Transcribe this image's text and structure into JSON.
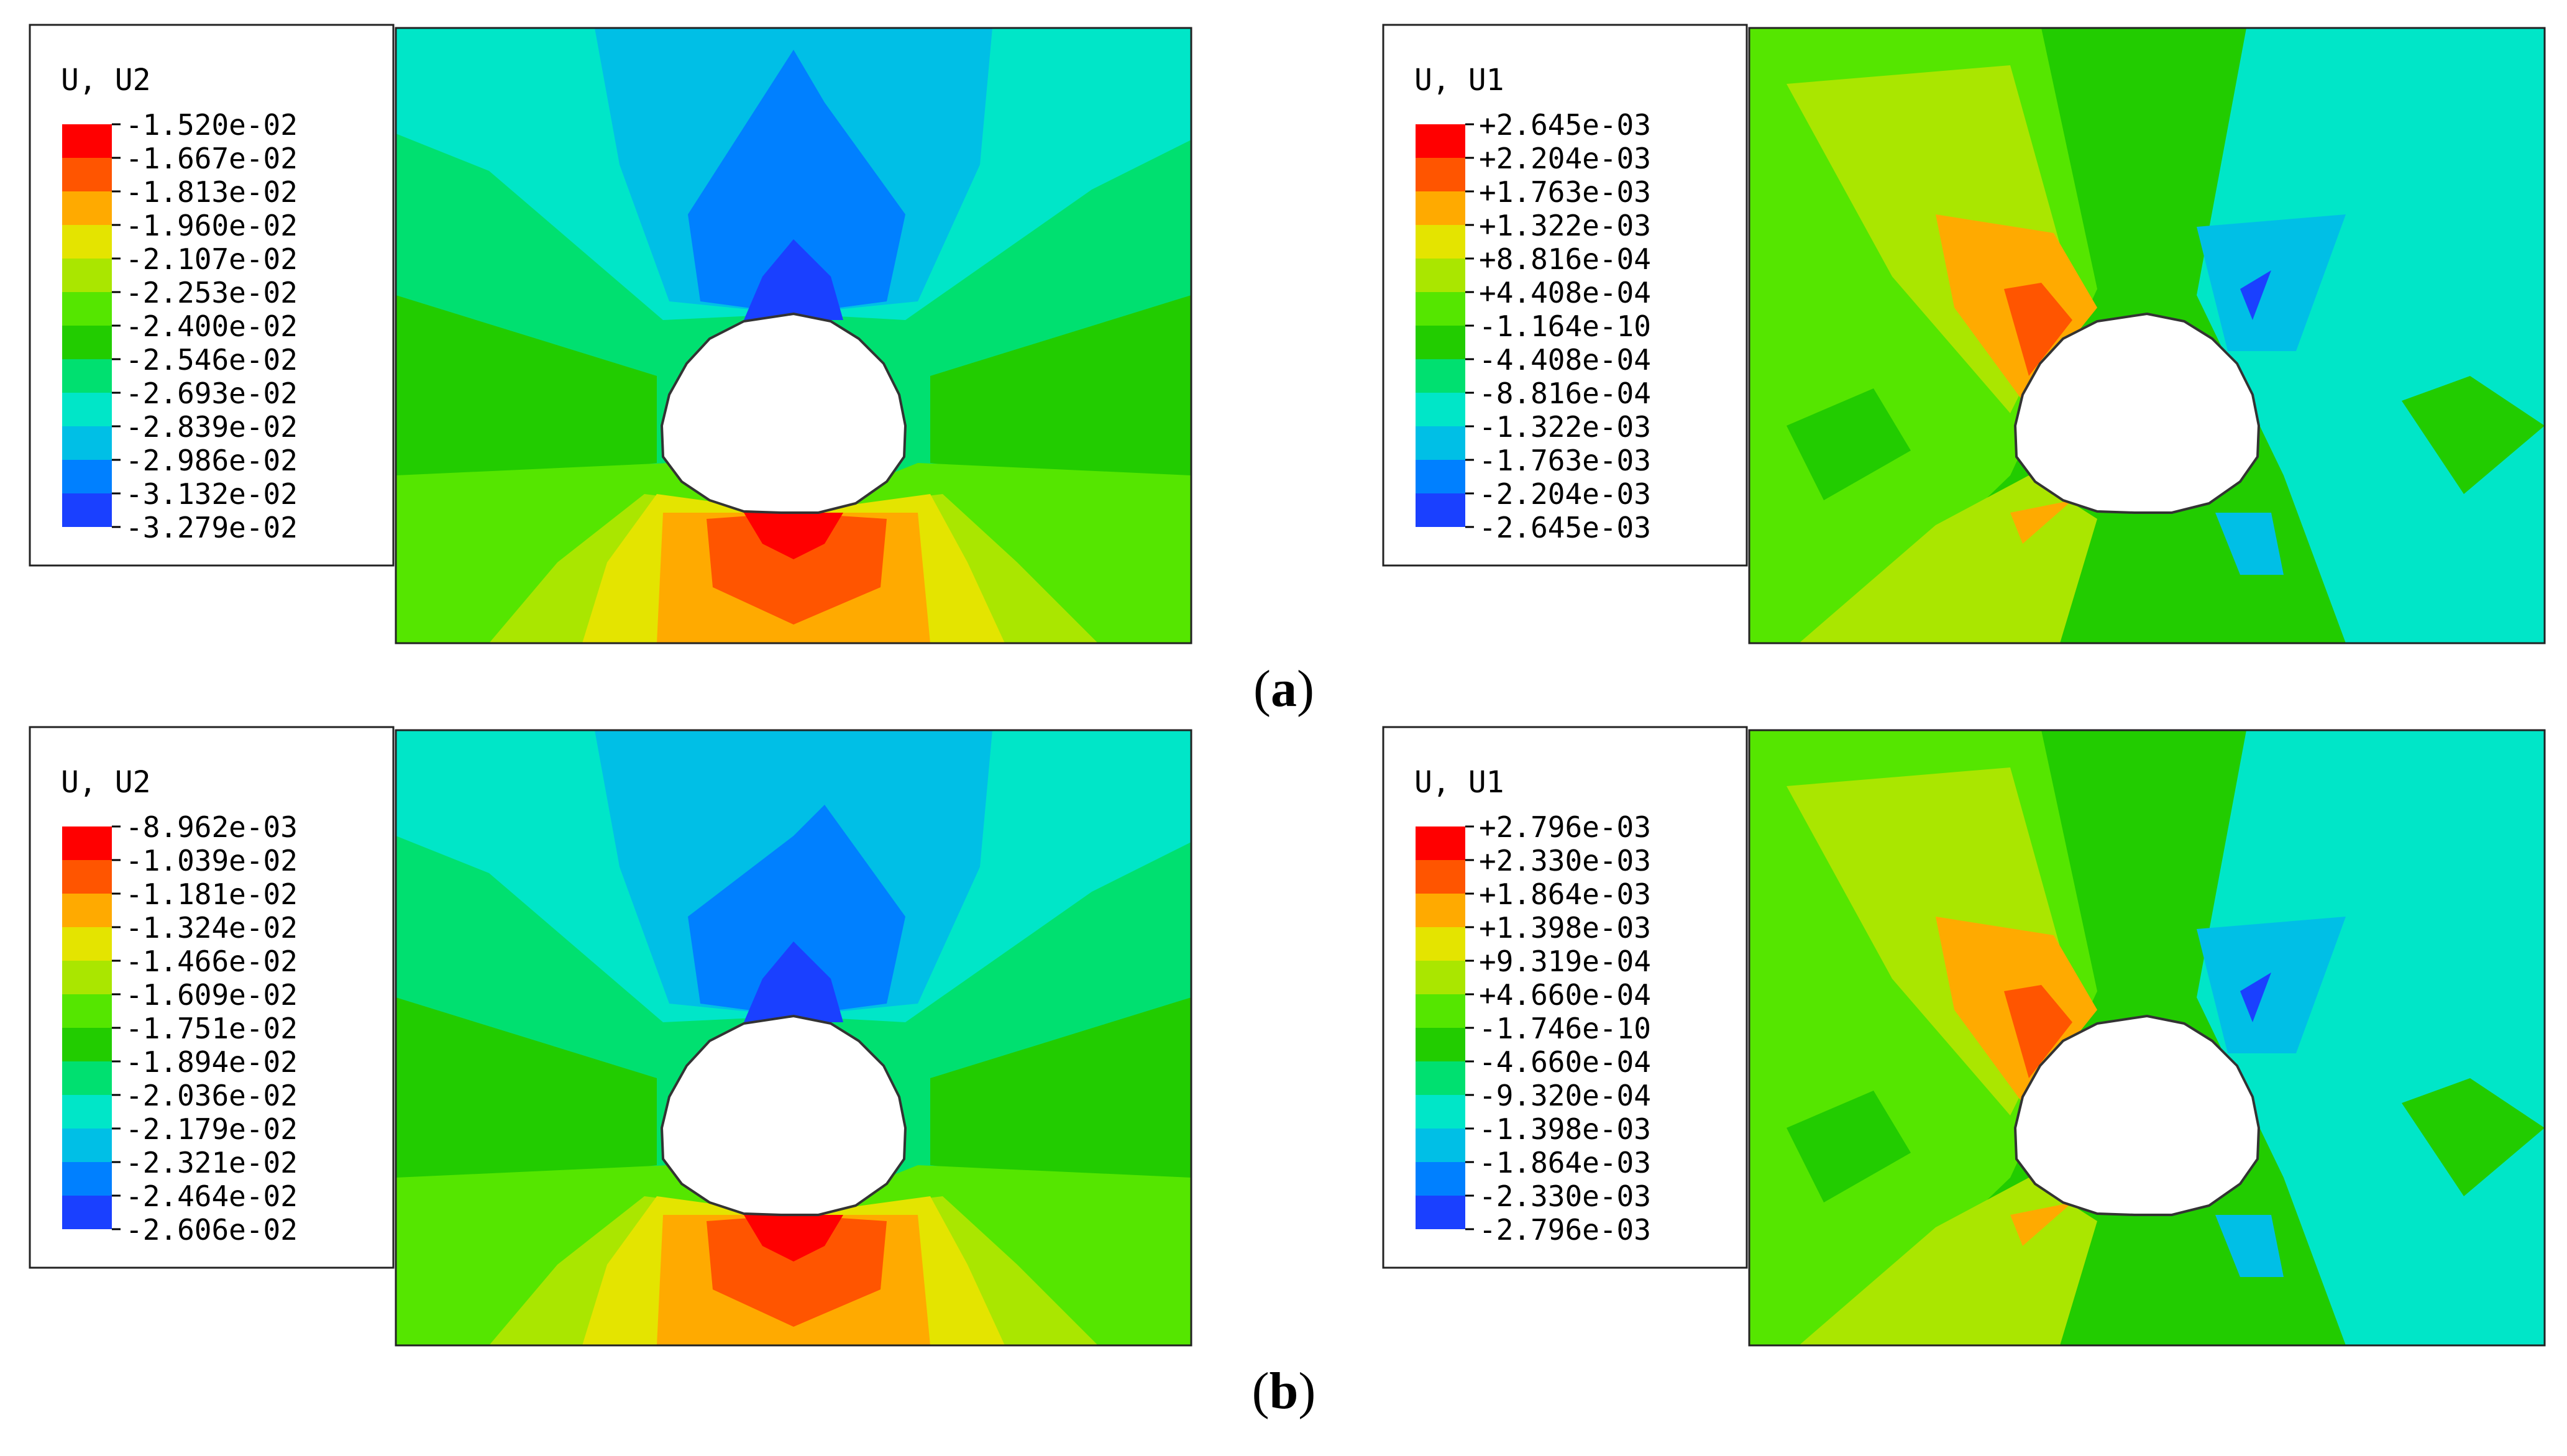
{
  "panels": [
    {
      "caption": "a",
      "plots": [
        {
          "variable": "U, U2",
          "legend": [
            "-1.520e-02",
            "-1.667e-02",
            "-1.813e-02",
            "-1.960e-02",
            "-2.107e-02",
            "-2.253e-02",
            "-2.400e-02",
            "-2.546e-02",
            "-2.693e-02",
            "-2.839e-02",
            "-2.986e-02",
            "-3.132e-02",
            "-3.279e-02"
          ]
        },
        {
          "variable": "U, U1",
          "legend": [
            "+2.645e-03",
            "+2.204e-03",
            "+1.763e-03",
            "+1.322e-03",
            "+8.816e-04",
            "+4.408e-04",
            "-1.164e-10",
            "-4.408e-04",
            "-8.816e-04",
            "-1.322e-03",
            "-1.763e-03",
            "-2.204e-03",
            "-2.645e-03"
          ]
        }
      ]
    },
    {
      "caption": "b",
      "plots": [
        {
          "variable": "U, U2",
          "legend": [
            "-8.962e-03",
            "-1.039e-02",
            "-1.181e-02",
            "-1.324e-02",
            "-1.466e-02",
            "-1.609e-02",
            "-1.751e-02",
            "-1.894e-02",
            "-2.036e-02",
            "-2.179e-02",
            "-2.321e-02",
            "-2.464e-02",
            "-2.606e-02"
          ]
        },
        {
          "variable": "U, U1",
          "legend": [
            "+2.796e-03",
            "+2.330e-03",
            "+1.864e-03",
            "+1.398e-03",
            "+9.319e-04",
            "+4.660e-04",
            "-1.746e-10",
            "-4.660e-04",
            "-9.320e-04",
            "-1.398e-03",
            "-1.864e-03",
            "-2.330e-03",
            "-2.796e-03"
          ]
        }
      ]
    }
  ],
  "colormap": [
    "#ff0000",
    "#ff5500",
    "#ffaa00",
    "#e4e400",
    "#aae600",
    "#55e600",
    "#22cc00",
    "#00e070",
    "#00e6c8",
    "#00bfe6",
    "#0080ff",
    "#1a40ff",
    "#0000ff"
  ]
}
